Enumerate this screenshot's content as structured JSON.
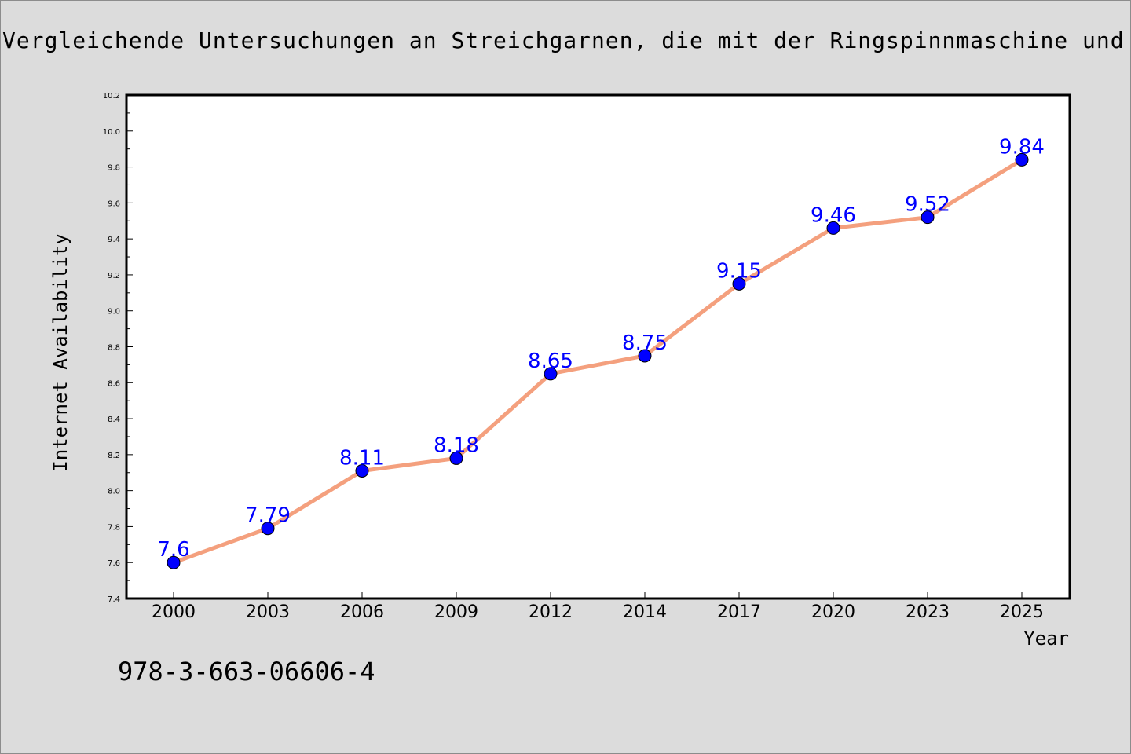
{
  "chart_data": {
    "type": "line",
    "title": "Vergleichende Untersuchungen an Streichgarnen, die mit der Ringspinnmaschine und",
    "xlabel": "Year",
    "ylabel": "Internet Availability",
    "categories": [
      "2000",
      "2003",
      "2006",
      "2009",
      "2012",
      "2014",
      "2017",
      "2020",
      "2023",
      "2025"
    ],
    "series": [
      {
        "values": [
          7.6,
          7.79,
          8.11,
          8.18,
          8.65,
          8.75,
          9.15,
          9.46,
          9.52,
          9.84
        ],
        "labels": [
          "7.6",
          "7.79",
          "8.11",
          "8.18",
          "8.65",
          "8.75",
          "9.15",
          "9.46",
          "9.52",
          "9.84"
        ],
        "line_color": "#f4a07e",
        "marker_color": "#0000ff"
      }
    ],
    "ylim": [
      7.4,
      10.2
    ],
    "yticks": [
      "7.4",
      "7.6",
      "7.8",
      "8.0",
      "8.2",
      "8.4",
      "8.6",
      "8.8",
      "9.0",
      "9.2",
      "9.4",
      "9.6",
      "9.8",
      "10.0",
      "10.2"
    ],
    "grid": false,
    "legend": "none"
  },
  "footer_text": "978-3-663-06606-4",
  "colors": {
    "background": "#dcdcdc",
    "plot_background": "#ffffff",
    "line": "#f4a07e",
    "marker": "#0000ff",
    "data_label": "#0000ff"
  }
}
